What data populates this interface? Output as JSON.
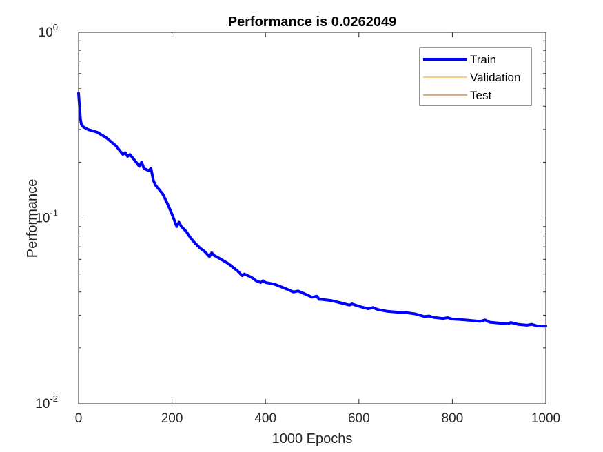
{
  "chart_data": {
    "type": "line",
    "title": "Performance is 0.0262049",
    "xlabel": "1000 Epochs",
    "ylabel": "Performance",
    "xlim": [
      0,
      1000
    ],
    "ylim": [
      0.01,
      1
    ],
    "yscale": "log",
    "grid": false,
    "legend_position": "top-right",
    "x_ticks": [
      "0",
      "200",
      "400",
      "600",
      "800",
      "1000"
    ],
    "y_ticks": [
      {
        "base": "10",
        "exp": "0"
      },
      {
        "base": "10",
        "exp": "-1"
      },
      {
        "base": "10",
        "exp": "-2"
      }
    ],
    "series": [
      {
        "name": "Train",
        "color": "#0000ff",
        "x": [
          0,
          2,
          4,
          6,
          10,
          20,
          40,
          60,
          80,
          95,
          100,
          105,
          110,
          120,
          130,
          135,
          140,
          150,
          155,
          160,
          165,
          170,
          180,
          190,
          200,
          210,
          215,
          220,
          230,
          240,
          250,
          260,
          270,
          280,
          285,
          290,
          300,
          320,
          340,
          350,
          355,
          370,
          380,
          390,
          395,
          400,
          420,
          440,
          460,
          470,
          480,
          500,
          510,
          515,
          520,
          540,
          560,
          580,
          585,
          600,
          620,
          630,
          640,
          660,
          680,
          700,
          720,
          740,
          750,
          760,
          780,
          790,
          800,
          820,
          840,
          860,
          870,
          880,
          900,
          920,
          925,
          940,
          960,
          970,
          980,
          1000
        ],
        "values": [
          0.47,
          0.4,
          0.34,
          0.32,
          0.31,
          0.3,
          0.29,
          0.27,
          0.245,
          0.22,
          0.225,
          0.215,
          0.22,
          0.205,
          0.19,
          0.2,
          0.185,
          0.18,
          0.185,
          0.16,
          0.15,
          0.145,
          0.135,
          0.12,
          0.105,
          0.09,
          0.095,
          0.09,
          0.085,
          0.078,
          0.073,
          0.069,
          0.066,
          0.062,
          0.065,
          0.063,
          0.061,
          0.057,
          0.052,
          0.049,
          0.05,
          0.048,
          0.046,
          0.045,
          0.046,
          0.045,
          0.044,
          0.042,
          0.04,
          0.0405,
          0.0395,
          0.0375,
          0.038,
          0.0365,
          0.0365,
          0.036,
          0.035,
          0.034,
          0.0345,
          0.0335,
          0.0325,
          0.033,
          0.0322,
          0.0315,
          0.0312,
          0.031,
          0.0305,
          0.0295,
          0.0297,
          0.0292,
          0.0288,
          0.0291,
          0.0286,
          0.0284,
          0.0281,
          0.0278,
          0.0283,
          0.0275,
          0.0272,
          0.027,
          0.0274,
          0.0268,
          0.0265,
          0.0268,
          0.0263,
          0.0262
        ]
      },
      {
        "name": "Validation",
        "color": "#f0a000",
        "x": [],
        "values": []
      },
      {
        "name": "Test",
        "color": "#b06000",
        "x": [],
        "values": []
      }
    ]
  }
}
